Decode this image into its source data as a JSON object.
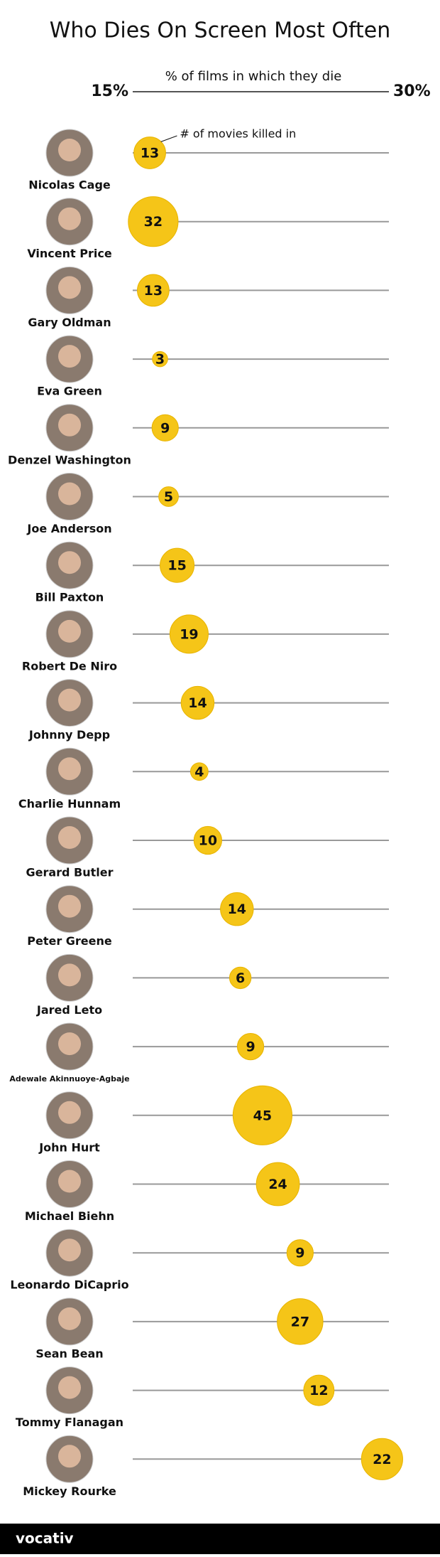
{
  "chart_data": {
    "type": "dot",
    "title": "Who Dies On Screen Most Often",
    "x_label": "% of films in which they die",
    "annotation": "# of movies killed in",
    "categories": [
      "Nicolas Cage",
      "Vincent Price",
      "Gary Oldman",
      "Eva Green",
      "Denzel Washington",
      "Joe Anderson",
      "Bill Paxton",
      "Robert De Niro",
      "Johnny Depp",
      "Charlie Hunnam",
      "Gerard Butler",
      "Peter Greene",
      "Jared Leto",
      "Adewale Akinnuoye-Agbaje",
      "John Hurt",
      "Michael Biehn",
      "Leonardo DiCaprio",
      "Sean Bean",
      "Tommy Flanagan",
      "Mickey Rourke"
    ],
    "values": [
      16.0,
      16.2,
      16.2,
      16.6,
      16.9,
      17.1,
      17.6,
      18.3,
      18.8,
      18.9,
      19.4,
      21.1,
      21.3,
      21.9,
      22.6,
      23.5,
      24.8,
      24.8,
      25.9,
      29.6
    ],
    "sizes": [
      13,
      32,
      13,
      3,
      9,
      5,
      15,
      19,
      14,
      4,
      10,
      14,
      6,
      9,
      45,
      24,
      9,
      27,
      12,
      22
    ],
    "color": "#f5c518",
    "xlim": [
      15,
      30
    ],
    "xticks": [
      {
        "value": 15,
        "label": "15%"
      },
      {
        "value": 30,
        "label": "30%"
      }
    ]
  },
  "footer": "vocativ"
}
